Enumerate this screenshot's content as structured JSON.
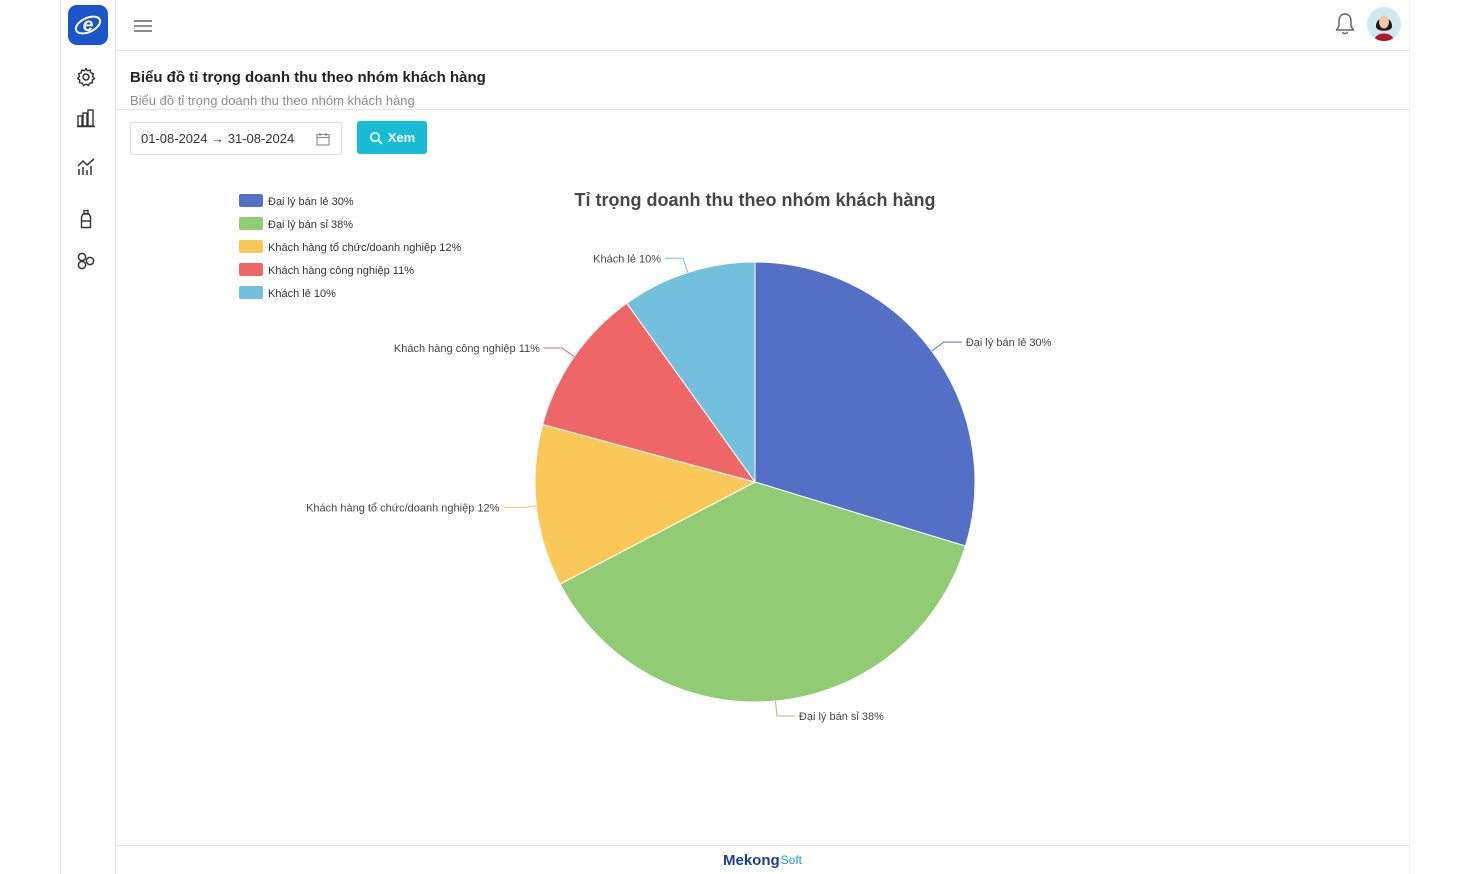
{
  "header": {
    "menu_icon": "hamburger-icon",
    "notification_icon": "bell-icon"
  },
  "sidebar": {
    "items": [
      {
        "icon": "gear-icon"
      },
      {
        "icon": "building-chart-icon"
      },
      {
        "icon": "line-chart-icon"
      },
      {
        "icon": "bottle-icon"
      },
      {
        "icon": "molecule-icon"
      }
    ]
  },
  "page": {
    "title": "Biểu đồ tỉ trọng doanh thu theo nhóm khách hàng",
    "subtitle": "Biểu đồ tỉ trọng doanh thu theo nhóm khách hàng"
  },
  "filter": {
    "date_range": "01-08-2024 → 31-08-2024",
    "view_button": "Xem"
  },
  "chart_data": {
    "type": "pie",
    "title": "Tỉ trọng doanh thu theo nhóm khách hàng",
    "legend_position": "top-left",
    "slices": [
      {
        "label": "Đại lý bán lẻ 30%",
        "value": 30,
        "color": "#5470c6"
      },
      {
        "label": "Đại lý bán sỉ 38%",
        "value": 38,
        "color": "#91cc75"
      },
      {
        "label": "Khách hàng tổ chức/doanh nghiệp 12%",
        "value": 12,
        "color": "#fac858"
      },
      {
        "label": "Khách hàng công nghiệp 11%",
        "value": 11,
        "color": "#ee6666"
      },
      {
        "label": "Khách lẻ 10%",
        "value": 10,
        "color": "#73c0de"
      }
    ]
  },
  "footer": {
    "brand_main": "Mekong",
    "brand_sub": "Soft"
  }
}
